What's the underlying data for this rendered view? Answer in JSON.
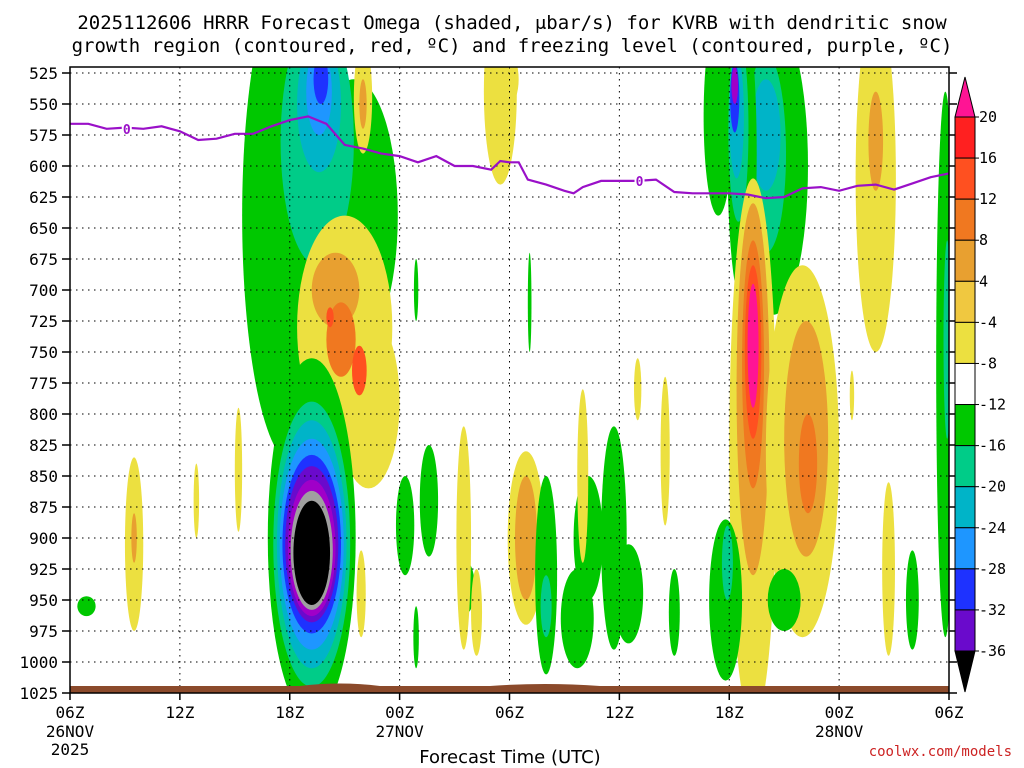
{
  "chart_data": {
    "type": "heatmap",
    "title_lines": [
      "2025112606 HRRR Forecast Omega (shaded, μbar/s) for KVRB with dendritic snow",
      "growth region (contoured, red, ºC) and freezing level (contoured, purple, ºC)"
    ],
    "xlabel": "Forecast Time (UTC)",
    "credit": "coolwx.com/models",
    "x_range_hours": [
      0,
      48
    ],
    "y_range_mb": [
      525,
      1025
    ],
    "y_ticks": [
      525,
      550,
      575,
      600,
      625,
      650,
      675,
      700,
      725,
      750,
      775,
      800,
      825,
      850,
      875,
      900,
      925,
      950,
      975,
      1000,
      1025
    ],
    "y_tick_labels": [
      "525",
      "550",
      "575",
      "600",
      "625",
      "650",
      "675",
      "700",
      "725",
      "750",
      "775",
      "800",
      "825",
      "850",
      "875",
      "900",
      "925",
      "950",
      "975",
      "1000",
      "1025"
    ],
    "x_ticks": [
      {
        "hour": 0,
        "label": "06Z",
        "sub": [
          "26NOV",
          "2025"
        ]
      },
      {
        "hour": 6,
        "label": "12Z",
        "sub": []
      },
      {
        "hour": 12,
        "label": "18Z",
        "sub": []
      },
      {
        "hour": 18,
        "label": "00Z",
        "sub": [
          "27NOV"
        ]
      },
      {
        "hour": 24,
        "label": "06Z",
        "sub": []
      },
      {
        "hour": 30,
        "label": "12Z",
        "sub": []
      },
      {
        "hour": 36,
        "label": "18Z",
        "sub": []
      },
      {
        "hour": 42,
        "label": "00Z",
        "sub": [
          "28NOV"
        ]
      },
      {
        "hour": 48,
        "label": "06Z",
        "sub": []
      }
    ],
    "colorbar": {
      "labels": [
        "20",
        "16",
        "12",
        "8",
        "4",
        "-4",
        "-8",
        "-12",
        "-16",
        "-20",
        "-24",
        "-28",
        "-32",
        "-36"
      ],
      "colors": [
        "#ff1494",
        "#ff2020",
        "#ff5020",
        "#f07820",
        "#e8a030",
        "#f0c840",
        "#ece040",
        "#ffffff",
        "#00c800",
        "#00cc88",
        "#00b4c8",
        "#1e96ff",
        "#1e32ff",
        "#6a0acc",
        "#a000c8",
        "#a0a0a0",
        "#000000"
      ]
    },
    "freezing_level": {
      "color": "#9a10c8",
      "label": "0",
      "points": [
        [
          0,
          566
        ],
        [
          1,
          566
        ],
        [
          2,
          570
        ],
        [
          3,
          569
        ],
        [
          4,
          570
        ],
        [
          5,
          568
        ],
        [
          6,
          572
        ],
        [
          7,
          579
        ],
        [
          8,
          578
        ],
        [
          9,
          574
        ],
        [
          10,
          574
        ],
        [
          11,
          568
        ],
        [
          12,
          563
        ],
        [
          13,
          560
        ],
        [
          14,
          566
        ],
        [
          15,
          583
        ],
        [
          16,
          586
        ],
        [
          17,
          590
        ],
        [
          18,
          592
        ],
        [
          19,
          597
        ],
        [
          20,
          592
        ],
        [
          21,
          600
        ],
        [
          22,
          600
        ],
        [
          23,
          603
        ],
        [
          23.5,
          596
        ],
        [
          24,
          597
        ],
        [
          24.5,
          597
        ],
        [
          25,
          611
        ],
        [
          26,
          615
        ],
        [
          27,
          620
        ],
        [
          27.5,
          622
        ],
        [
          28,
          617
        ],
        [
          29,
          612
        ],
        [
          30,
          612
        ],
        [
          31,
          612
        ],
        [
          32,
          611
        ],
        [
          33,
          621
        ],
        [
          34,
          622
        ],
        [
          35,
          622
        ],
        [
          36,
          622
        ],
        [
          37,
          623
        ],
        [
          38,
          626
        ],
        [
          39,
          625
        ],
        [
          40,
          618
        ],
        [
          41,
          617
        ],
        [
          42,
          620
        ],
        [
          43,
          616
        ],
        [
          44,
          615
        ],
        [
          45,
          619
        ],
        [
          46,
          614
        ],
        [
          47,
          609
        ],
        [
          48,
          606
        ]
      ]
    },
    "blobs": [
      {
        "c": "#00c800",
        "h": 12.2,
        "p": 640,
        "rh": 2.8,
        "rp": 200
      },
      {
        "c": "#00c800",
        "h": 15.5,
        "p": 640,
        "rh": 2.4,
        "rp": 110
      },
      {
        "c": "#00c800",
        "h": 11.8,
        "p": 540,
        "rh": 0.9,
        "rp": 30
      },
      {
        "c": "#00cc88",
        "h": 13.5,
        "p": 580,
        "rh": 2.0,
        "rp": 100
      },
      {
        "c": "#00b4c8",
        "h": 13.6,
        "p": 550,
        "rh": 1.2,
        "rp": 55
      },
      {
        "c": "#1e96ff",
        "h": 13.6,
        "p": 540,
        "rh": 0.7,
        "rp": 35
      },
      {
        "c": "#1e32ff",
        "h": 13.7,
        "p": 530,
        "rh": 0.4,
        "rp": 20
      },
      {
        "c": "#ece040",
        "h": 15.0,
        "p": 730,
        "rh": 2.6,
        "rp": 90
      },
      {
        "c": "#ece040",
        "h": 16.3,
        "p": 790,
        "rh": 1.7,
        "rp": 70
      },
      {
        "c": "#e8a030",
        "h": 14.5,
        "p": 700,
        "rh": 1.3,
        "rp": 30
      },
      {
        "c": "#f07820",
        "h": 14.8,
        "p": 740,
        "rh": 0.8,
        "rp": 30
      },
      {
        "c": "#ff5020",
        "h": 15.8,
        "p": 765,
        "rh": 0.4,
        "rp": 20
      },
      {
        "c": "#ff5020",
        "h": 14.2,
        "p": 722,
        "rh": 0.2,
        "rp": 8
      },
      {
        "c": "#ece040",
        "h": 16.0,
        "p": 545,
        "rh": 0.5,
        "rp": 45
      },
      {
        "c": "#e8a030",
        "h": 16.0,
        "p": 550,
        "rh": 0.2,
        "rp": 20
      },
      {
        "c": "#00c800",
        "h": 13.2,
        "p": 900,
        "rh": 2.4,
        "rp": 145
      },
      {
        "c": "#00cc88",
        "h": 13.2,
        "p": 905,
        "rh": 2.1,
        "rp": 115
      },
      {
        "c": "#00b4c8",
        "h": 13.2,
        "p": 905,
        "rh": 1.9,
        "rp": 100
      },
      {
        "c": "#1e96ff",
        "h": 13.2,
        "p": 905,
        "rh": 1.75,
        "rp": 85
      },
      {
        "c": "#1e32ff",
        "h": 13.2,
        "p": 905,
        "rh": 1.6,
        "rp": 72
      },
      {
        "c": "#6a0acc",
        "h": 13.2,
        "p": 905,
        "rh": 1.45,
        "rp": 63
      },
      {
        "c": "#a000c8",
        "h": 13.2,
        "p": 908,
        "rh": 1.3,
        "rp": 55
      },
      {
        "c": "#a0a0a0",
        "h": 13.2,
        "p": 910,
        "rh": 1.15,
        "rp": 48
      },
      {
        "c": "#000000",
        "h": 13.2,
        "p": 912,
        "rh": 1.0,
        "rp": 42
      },
      {
        "c": "#ece040",
        "h": 15.9,
        "p": 945,
        "rh": 0.25,
        "rp": 35
      },
      {
        "c": "#00c800",
        "h": 0.9,
        "p": 955,
        "rh": 0.5,
        "rp": 8
      },
      {
        "c": "#ece040",
        "h": 3.5,
        "p": 905,
        "rh": 0.5,
        "rp": 70
      },
      {
        "c": "#e8a030",
        "h": 3.5,
        "p": 900,
        "rh": 0.15,
        "rp": 20
      },
      {
        "c": "#ece040",
        "h": 6.9,
        "p": 870,
        "rh": 0.15,
        "rp": 30
      },
      {
        "c": "#ece040",
        "h": 9.2,
        "p": 845,
        "rh": 0.2,
        "rp": 50
      },
      {
        "c": "#00c800",
        "h": 19.6,
        "p": 870,
        "rh": 0.5,
        "rp": 45
      },
      {
        "c": "#00c800",
        "h": 18.9,
        "p": 980,
        "rh": 0.15,
        "rp": 25
      },
      {
        "c": "#00c800",
        "h": 18.3,
        "p": 890,
        "rh": 0.5,
        "rp": 40
      },
      {
        "c": "#00c800",
        "h": 21.7,
        "p": 940,
        "rh": 0.4,
        "rp": 20
      },
      {
        "c": "#ece040",
        "h": 21.5,
        "p": 900,
        "rh": 0.4,
        "rp": 90
      },
      {
        "c": "#ece040",
        "h": 22.2,
        "p": 960,
        "rh": 0.3,
        "rp": 35
      },
      {
        "c": "#ece040",
        "h": 23.5,
        "p": 540,
        "rh": 0.9,
        "rp": 75
      },
      {
        "c": "#ece040",
        "h": 24.0,
        "p": 530,
        "rh": 0.5,
        "rp": 20
      },
      {
        "c": "#ece040",
        "h": 24.9,
        "p": 900,
        "rh": 1.0,
        "rp": 70
      },
      {
        "c": "#e8a030",
        "h": 24.9,
        "p": 900,
        "rh": 0.6,
        "rp": 50
      },
      {
        "c": "#00c800",
        "h": 26.0,
        "p": 930,
        "rh": 0.6,
        "rp": 80
      },
      {
        "c": "#00cc88",
        "h": 26.0,
        "p": 955,
        "rh": 0.3,
        "rp": 25
      },
      {
        "c": "#00c800",
        "h": 28.3,
        "p": 900,
        "rh": 0.8,
        "rp": 50
      },
      {
        "c": "#00c800",
        "h": 29.7,
        "p": 900,
        "rh": 0.7,
        "rp": 90
      },
      {
        "c": "#00c800",
        "h": 30.5,
        "p": 945,
        "rh": 0.8,
        "rp": 40
      },
      {
        "c": "#00c800",
        "h": 27.7,
        "p": 965,
        "rh": 0.9,
        "rp": 40
      },
      {
        "c": "#00c800",
        "h": 33.0,
        "p": 960,
        "rh": 0.3,
        "rp": 35
      },
      {
        "c": "#ece040",
        "h": 32.5,
        "p": 830,
        "rh": 0.25,
        "rp": 60
      },
      {
        "c": "#ece040",
        "h": 31.0,
        "p": 780,
        "rh": 0.2,
        "rp": 25
      },
      {
        "c": "#ece040",
        "h": 28.0,
        "p": 850,
        "rh": 0.3,
        "rp": 70
      },
      {
        "c": "#00c800",
        "h": 25.1,
        "p": 710,
        "rh": 0.1,
        "rp": 40
      },
      {
        "c": "#00c800",
        "h": 18.9,
        "p": 700,
        "rh": 0.12,
        "rp": 25
      },
      {
        "c": "#00c800",
        "h": 38.4,
        "p": 600,
        "rh": 1.9,
        "rp": 120
      },
      {
        "c": "#00c800",
        "h": 35.4,
        "p": 560,
        "rh": 0.8,
        "rp": 80
      },
      {
        "c": "#00cc88",
        "h": 38.0,
        "p": 590,
        "rh": 1.1,
        "rp": 80
      },
      {
        "c": "#00b4c8",
        "h": 38.0,
        "p": 575,
        "rh": 0.8,
        "rp": 45
      },
      {
        "c": "#00c800",
        "h": 36.7,
        "p": 590,
        "rh": 0.8,
        "rp": 120
      },
      {
        "c": "#00cc88",
        "h": 36.5,
        "p": 570,
        "rh": 0.55,
        "rp": 75
      },
      {
        "c": "#00b4c8",
        "h": 36.4,
        "p": 560,
        "rh": 0.4,
        "rp": 50
      },
      {
        "c": "#1e32ff",
        "h": 36.3,
        "p": 545,
        "rh": 0.25,
        "rp": 28
      },
      {
        "c": "#a000c8",
        "h": 36.3,
        "p": 535,
        "rh": 0.18,
        "rp": 15
      },
      {
        "c": "#ece040",
        "h": 37.3,
        "p": 830,
        "rh": 1.3,
        "rp": 220
      },
      {
        "c": "#e8a030",
        "h": 37.3,
        "p": 780,
        "rh": 0.9,
        "rp": 150
      },
      {
        "c": "#f07820",
        "h": 37.3,
        "p": 760,
        "rh": 0.6,
        "rp": 100
      },
      {
        "c": "#ff5020",
        "h": 37.3,
        "p": 750,
        "rh": 0.45,
        "rp": 70
      },
      {
        "c": "#ff1494",
        "h": 37.3,
        "p": 745,
        "rh": 0.3,
        "rp": 50
      },
      {
        "c": "#ece040",
        "h": 40.0,
        "p": 830,
        "rh": 2.0,
        "rp": 150
      },
      {
        "c": "#e8a030",
        "h": 40.2,
        "p": 820,
        "rh": 1.2,
        "rp": 95
      },
      {
        "c": "#f07820",
        "h": 40.3,
        "p": 840,
        "rh": 0.5,
        "rp": 40
      },
      {
        "c": "#00c800",
        "h": 35.8,
        "p": 950,
        "rh": 0.9,
        "rp": 65
      },
      {
        "c": "#00cc88",
        "h": 35.9,
        "p": 920,
        "rh": 0.3,
        "rp": 30
      },
      {
        "c": "#00c800",
        "h": 39.0,
        "p": 950,
        "rh": 0.9,
        "rp": 25
      },
      {
        "c": "#00c800",
        "h": 46.0,
        "p": 950,
        "rh": 0.35,
        "rp": 40
      },
      {
        "c": "#ece040",
        "h": 44.0,
        "p": 610,
        "rh": 1.1,
        "rp": 140
      },
      {
        "c": "#e8a030",
        "h": 44.0,
        "p": 580,
        "rh": 0.4,
        "rp": 40
      },
      {
        "c": "#ece040",
        "h": 44.7,
        "p": 925,
        "rh": 0.35,
        "rp": 70
      },
      {
        "c": "#ece040",
        "h": 42.7,
        "p": 785,
        "rh": 0.12,
        "rp": 20
      },
      {
        "c": "#00c800",
        "h": 47.8,
        "p": 760,
        "rh": 0.5,
        "rp": 220
      },
      {
        "c": "#00cc88",
        "h": 47.9,
        "p": 740,
        "rh": 0.2,
        "rp": 80
      }
    ]
  }
}
